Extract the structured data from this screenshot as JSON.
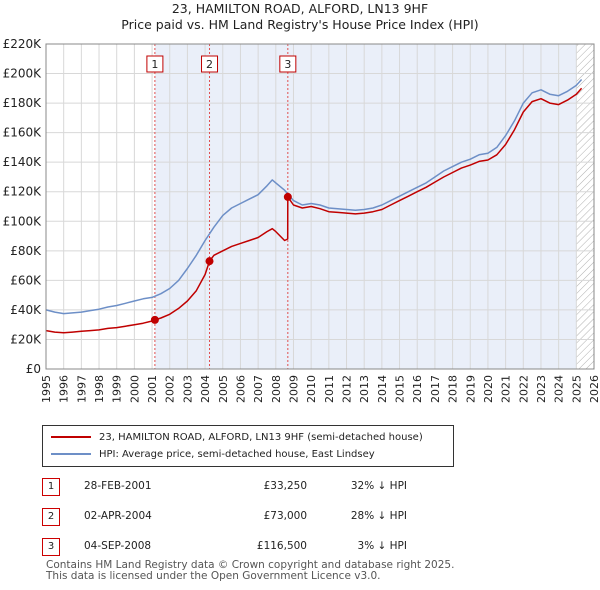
{
  "header": {
    "title_line1": "23, HAMILTON ROAD, ALFORD, LN13 9HF",
    "title_line2": "Price paid vs. HM Land Registry's House Price Index (HPI)"
  },
  "chart_data": {
    "type": "line",
    "title": "23, HAMILTON ROAD, ALFORD, LN13 9HF — Price paid vs. HM Land Registry's House Price Index (HPI)",
    "xlim": [
      1995,
      2026
    ],
    "ylim": [
      0,
      220000
    ],
    "x_ticks": [
      "1995",
      "1996",
      "1997",
      "1998",
      "1999",
      "2000",
      "2001",
      "2002",
      "2003",
      "2004",
      "2005",
      "2006",
      "2007",
      "2008",
      "2009",
      "2010",
      "2011",
      "2012",
      "2013",
      "2014",
      "2015",
      "2016",
      "2017",
      "2018",
      "2019",
      "2020",
      "2021",
      "2022",
      "2023",
      "2024",
      "2025",
      "2026"
    ],
    "y_ticks": [
      {
        "v": 0,
        "label": "£0"
      },
      {
        "v": 20000,
        "label": "£20K"
      },
      {
        "v": 40000,
        "label": "£40K"
      },
      {
        "v": 60000,
        "label": "£60K"
      },
      {
        "v": 80000,
        "label": "£80K"
      },
      {
        "v": 100000,
        "label": "£100K"
      },
      {
        "v": 120000,
        "label": "£120K"
      },
      {
        "v": 140000,
        "label": "£140K"
      },
      {
        "v": 160000,
        "label": "£160K"
      },
      {
        "v": 180000,
        "label": "£180K"
      },
      {
        "v": 200000,
        "label": "£200K"
      },
      {
        "v": 220000,
        "label": "£220K"
      }
    ],
    "grid": true,
    "shaded_from": 2001.16,
    "hatched_from": 2025.0,
    "series": [
      {
        "name": "HPI: Average price, semi-detached house, East Lindsey",
        "color": "#6d8fc7",
        "points": [
          [
            1995.0,
            40000
          ],
          [
            1995.5,
            38500
          ],
          [
            1996.0,
            37500
          ],
          [
            1996.5,
            38000
          ],
          [
            1997.0,
            38500
          ],
          [
            1997.5,
            39500
          ],
          [
            1998.0,
            40500
          ],
          [
            1998.5,
            42000
          ],
          [
            1999.0,
            43000
          ],
          [
            1999.5,
            44500
          ],
          [
            2000.0,
            46000
          ],
          [
            2000.5,
            47500
          ],
          [
            2001.0,
            48500
          ],
          [
            2001.5,
            51000
          ],
          [
            2002.0,
            54500
          ],
          [
            2002.5,
            60000
          ],
          [
            2003.0,
            68000
          ],
          [
            2003.5,
            77000
          ],
          [
            2004.0,
            87000
          ],
          [
            2004.5,
            96000
          ],
          [
            2005.0,
            104000
          ],
          [
            2005.5,
            109000
          ],
          [
            2006.0,
            112000
          ],
          [
            2006.5,
            115000
          ],
          [
            2007.0,
            118000
          ],
          [
            2007.5,
            124000
          ],
          [
            2007.8,
            128000
          ],
          [
            2008.0,
            126000
          ],
          [
            2008.5,
            121000
          ],
          [
            2009.0,
            114000
          ],
          [
            2009.5,
            111000
          ],
          [
            2010.0,
            112000
          ],
          [
            2010.5,
            111000
          ],
          [
            2011.0,
            109000
          ],
          [
            2011.5,
            108500
          ],
          [
            2012.0,
            108000
          ],
          [
            2012.5,
            107500
          ],
          [
            2013.0,
            108000
          ],
          [
            2013.5,
            109000
          ],
          [
            2014.0,
            111000
          ],
          [
            2014.5,
            114000
          ],
          [
            2015.0,
            117000
          ],
          [
            2015.5,
            120000
          ],
          [
            2016.0,
            123000
          ],
          [
            2016.5,
            126000
          ],
          [
            2017.0,
            130000
          ],
          [
            2017.5,
            134000
          ],
          [
            2018.0,
            137000
          ],
          [
            2018.5,
            140000
          ],
          [
            2019.0,
            142000
          ],
          [
            2019.5,
            145000
          ],
          [
            2020.0,
            146000
          ],
          [
            2020.5,
            150000
          ],
          [
            2021.0,
            158000
          ],
          [
            2021.5,
            168000
          ],
          [
            2022.0,
            180000
          ],
          [
            2022.5,
            187000
          ],
          [
            2023.0,
            189000
          ],
          [
            2023.5,
            186000
          ],
          [
            2024.0,
            185000
          ],
          [
            2024.5,
            188000
          ],
          [
            2025.0,
            192000
          ],
          [
            2025.3,
            196000
          ]
        ]
      },
      {
        "name": "23, HAMILTON ROAD, ALFORD, LN13 9HF (semi-detached house)",
        "color": "#c00000",
        "points": [
          [
            1995.0,
            26000
          ],
          [
            1995.5,
            25000
          ],
          [
            1996.0,
            24500
          ],
          [
            1996.5,
            25000
          ],
          [
            1997.0,
            25500
          ],
          [
            1997.5,
            26000
          ],
          [
            1998.0,
            26500
          ],
          [
            1998.5,
            27500
          ],
          [
            1999.0,
            28000
          ],
          [
            1999.5,
            29000
          ],
          [
            2000.0,
            30000
          ],
          [
            2000.5,
            31000
          ],
          [
            2001.0,
            32500
          ],
          [
            2001.16,
            33250
          ],
          [
            2001.5,
            34500
          ],
          [
            2002.0,
            37000
          ],
          [
            2002.5,
            41000
          ],
          [
            2003.0,
            46000
          ],
          [
            2003.5,
            53000
          ],
          [
            2004.0,
            64000
          ],
          [
            2004.25,
            73000
          ],
          [
            2004.5,
            77000
          ],
          [
            2005.0,
            80000
          ],
          [
            2005.5,
            83000
          ],
          [
            2006.0,
            85000
          ],
          [
            2006.5,
            87000
          ],
          [
            2007.0,
            89000
          ],
          [
            2007.5,
            93000
          ],
          [
            2007.8,
            95000
          ],
          [
            2008.0,
            93000
          ],
          [
            2008.5,
            87000
          ],
          [
            2008.67,
            88000
          ],
          [
            2008.68,
            116500
          ],
          [
            2009.0,
            111000
          ],
          [
            2009.5,
            109000
          ],
          [
            2010.0,
            110000
          ],
          [
            2010.5,
            108500
          ],
          [
            2011.0,
            106500
          ],
          [
            2011.5,
            106000
          ],
          [
            2012.0,
            105500
          ],
          [
            2012.5,
            105000
          ],
          [
            2013.0,
            105500
          ],
          [
            2013.5,
            106500
          ],
          [
            2014.0,
            108000
          ],
          [
            2014.5,
            111000
          ],
          [
            2015.0,
            114000
          ],
          [
            2015.5,
            117000
          ],
          [
            2016.0,
            120000
          ],
          [
            2016.5,
            123000
          ],
          [
            2017.0,
            126500
          ],
          [
            2017.5,
            130000
          ],
          [
            2018.0,
            133000
          ],
          [
            2018.5,
            136000
          ],
          [
            2019.0,
            138000
          ],
          [
            2019.5,
            140500
          ],
          [
            2020.0,
            141500
          ],
          [
            2020.5,
            145000
          ],
          [
            2021.0,
            152000
          ],
          [
            2021.5,
            162000
          ],
          [
            2022.0,
            174000
          ],
          [
            2022.5,
            181000
          ],
          [
            2023.0,
            183000
          ],
          [
            2023.5,
            180000
          ],
          [
            2024.0,
            179000
          ],
          [
            2024.5,
            182000
          ],
          [
            2025.0,
            186000
          ],
          [
            2025.3,
            190000
          ]
        ]
      }
    ],
    "sales": [
      {
        "label": "1",
        "year": 2001.16,
        "price": 33250
      },
      {
        "label": "2",
        "year": 2004.25,
        "price": 73000
      },
      {
        "label": "3",
        "year": 2008.68,
        "price": 116500
      }
    ]
  },
  "legend": {
    "property_label": "23, HAMILTON ROAD, ALFORD, LN13 9HF (semi-detached house)",
    "hpi_label": "HPI: Average price, semi-detached house, East Lindsey",
    "property_color": "#c00000",
    "hpi_color": "#6d8fc7"
  },
  "sales_table": [
    {
      "num": "1",
      "date": "28-FEB-2001",
      "price": "£33,250",
      "hpi": "32% ↓ HPI"
    },
    {
      "num": "2",
      "date": "02-APR-2004",
      "price": "£73,000",
      "hpi": "28% ↓ HPI"
    },
    {
      "num": "3",
      "date": "04-SEP-2008",
      "price": "£116,500",
      "hpi": "3% ↓ HPI"
    }
  ],
  "footer": {
    "line1": "Contains HM Land Registry data © Crown copyright and database right 2025.",
    "line2": "This data is licensed under the Open Government Licence v3.0."
  }
}
